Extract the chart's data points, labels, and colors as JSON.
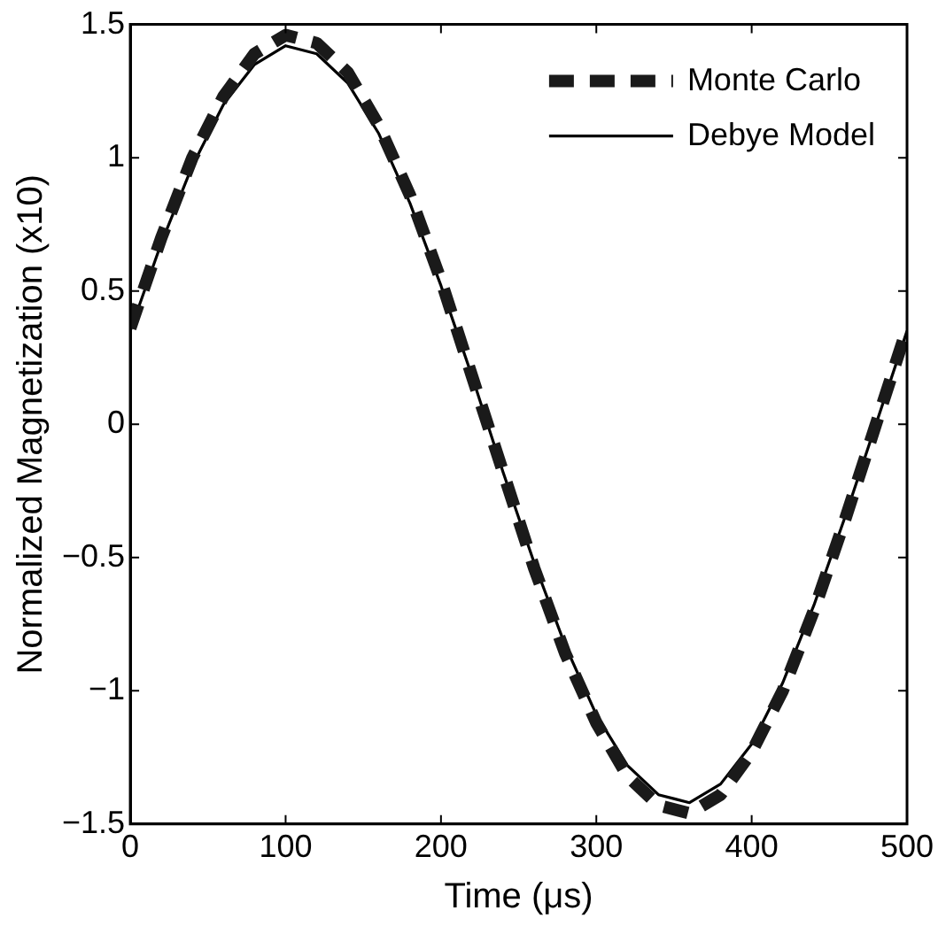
{
  "chart_data": {
    "type": "line",
    "xlabel": "Time (μs)",
    "ylabel": "Normalized Magnetization (x10)",
    "x": [
      0,
      20,
      40,
      60,
      80,
      100,
      120,
      140,
      160,
      180,
      200,
      220,
      240,
      260,
      280,
      300,
      320,
      340,
      360,
      380,
      400,
      420,
      440,
      460,
      480,
      500
    ],
    "series": [
      {
        "name": "Monte Carlo",
        "color": "#1a1a1a",
        "line_style": "dashed",
        "values": [
          0.36,
          0.7,
          1.0,
          1.23,
          1.39,
          1.46,
          1.43,
          1.32,
          1.12,
          0.86,
          0.54,
          0.18,
          -0.18,
          -0.54,
          -0.86,
          -1.12,
          -1.32,
          -1.43,
          -1.46,
          -1.39,
          -1.23,
          -1.0,
          -0.7,
          -0.36,
          0,
          0.36
        ]
      },
      {
        "name": "Debye Model",
        "color": "#000000",
        "line_style": "solid",
        "values": [
          0.35,
          0.68,
          0.97,
          1.2,
          1.35,
          1.42,
          1.39,
          1.28,
          1.09,
          0.83,
          0.52,
          0.18,
          -0.18,
          -0.52,
          -0.83,
          -1.09,
          -1.28,
          -1.39,
          -1.42,
          -1.35,
          -1.2,
          -0.97,
          -0.68,
          -0.35,
          0,
          0.35
        ]
      }
    ],
    "xlim": [
      0,
      500
    ],
    "xticks": [
      0,
      100,
      200,
      300,
      400,
      500
    ],
    "ylim": [
      -1.5,
      1.5
    ],
    "yticks": [
      {
        "value": -1.5,
        "label": "−1.5"
      },
      {
        "value": -1,
        "label": "−1"
      },
      {
        "value": -0.5,
        "label": "−0.5"
      },
      0,
      0.5,
      1,
      1.5
    ],
    "grid": false,
    "legend": "top right",
    "marker": "none"
  }
}
